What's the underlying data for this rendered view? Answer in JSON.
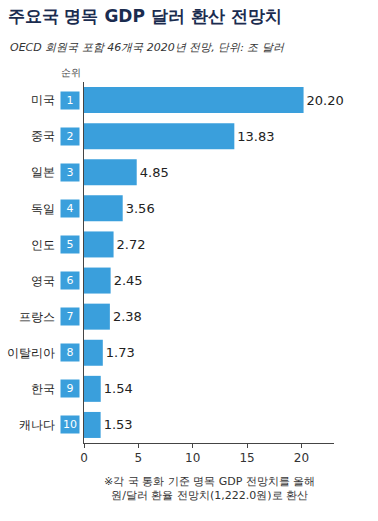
{
  "chart_data": {
    "type": "bar",
    "orientation": "horizontal",
    "title": "주요국 명목 GDP 달러 환산 전망치",
    "subtitle": "OECD 회원국 포함 46개국 2020년 전망, 단위: 조 달러",
    "rank_header": "순위",
    "ranks": [
      1,
      2,
      3,
      4,
      5,
      6,
      7,
      8,
      9,
      10
    ],
    "categories": [
      "미국",
      "중국",
      "일본",
      "독일",
      "인도",
      "영국",
      "프랑스",
      "이탈리아",
      "한국",
      "캐나다"
    ],
    "values": [
      20.2,
      13.83,
      4.85,
      3.56,
      2.72,
      2.45,
      2.38,
      1.73,
      1.54,
      1.53
    ],
    "value_labels": [
      "20.20",
      "13.83",
      "4.85",
      "3.56",
      "2.72",
      "2.45",
      "2.38",
      "1.73",
      "1.54",
      "1.53"
    ],
    "data_labels": true,
    "color": "#3a9fdc",
    "xlim": [
      0,
      23
    ],
    "xticks": [
      0,
      5,
      10,
      15,
      20
    ],
    "grid": false,
    "note": [
      "※각 국 통화 기준 명목 GDP 전망치를 올해",
      "원/달러 환율 전망치(1,222.0원)로 환산"
    ]
  }
}
